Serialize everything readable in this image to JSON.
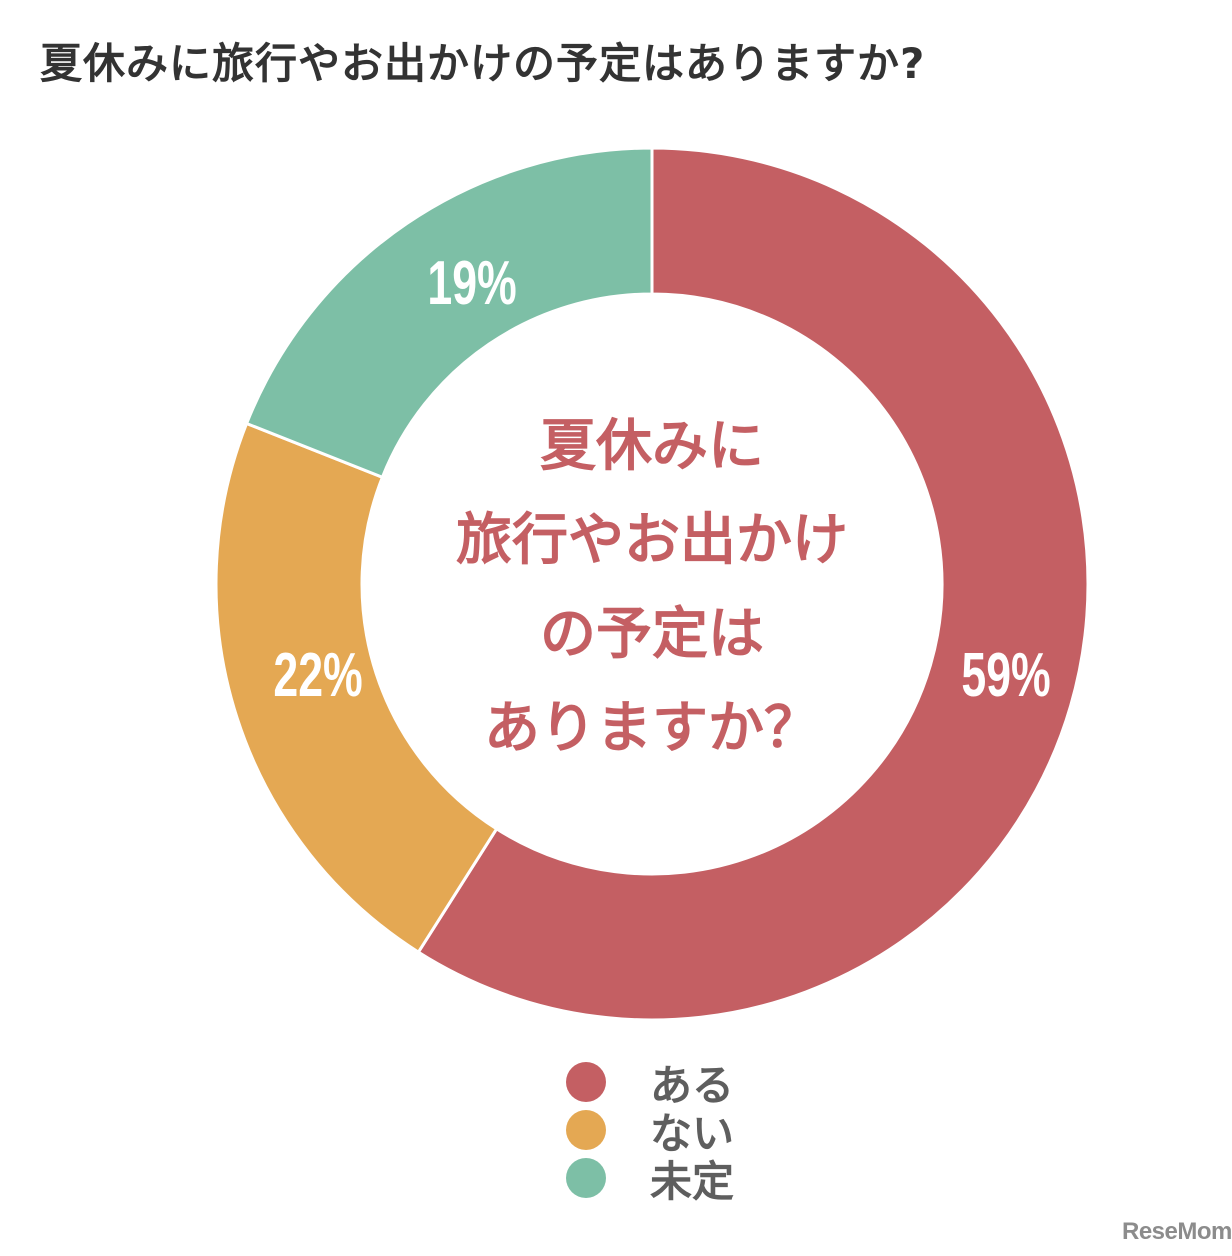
{
  "title": "夏休みに旅行やお出かけの予定はありますか?",
  "center_label": {
    "lines": [
      "夏休みに",
      "旅行やお出かけ",
      "の予定は",
      "ありますか？"
    ]
  },
  "colors": {
    "aru": "#c45f63",
    "nai": "#e4a853",
    "mitei": "#7dbfa6",
    "title": "#333333",
    "center_text": "#c45f63",
    "legend_text": "#5e5e5e"
  },
  "labels": {
    "aru": "59%",
    "nai": "22%",
    "mitei": "19%"
  },
  "legend": [
    {
      "label": "ある",
      "color": "#c45f63"
    },
    {
      "label": "ない",
      "color": "#e4a853"
    },
    {
      "label": "未定",
      "color": "#7dbfa6"
    }
  ],
  "logo": "ReseMom",
  "chart_data": {
    "type": "pie",
    "variant": "donut",
    "title": "夏休みに旅行やお出かけの予定はありますか?",
    "categories": [
      "ある",
      "ない",
      "未定"
    ],
    "values": [
      59,
      22,
      19
    ],
    "unit": "%",
    "colors": [
      "#c45f63",
      "#e4a853",
      "#7dbfa6"
    ],
    "start_angle": "12 o'clock",
    "direction": "clockwise",
    "center_text": "夏休みに旅行やお出かけの予定はありますか？",
    "legend_position": "bottom-center"
  }
}
